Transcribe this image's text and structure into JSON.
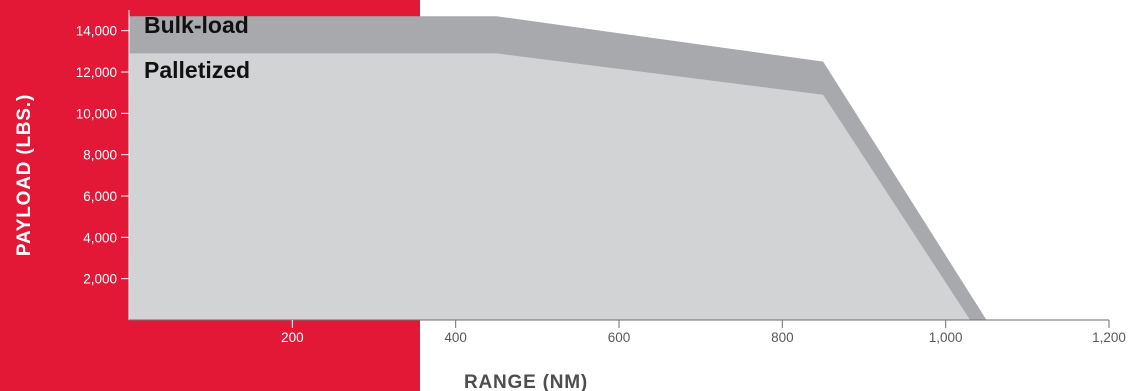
{
  "chart_data": {
    "type": "area",
    "title": "",
    "xlabel": "RANGE (NM)",
    "ylabel": "PAYLOAD (LBS.)",
    "xlim": [
      0,
      1200
    ],
    "ylim": [
      0,
      15000
    ],
    "x_ticks": [
      200,
      400,
      600,
      800,
      1000,
      1200
    ],
    "x_tick_labels": [
      "200",
      "400",
      "600",
      "800",
      "1,000",
      "1,200"
    ],
    "y_ticks": [
      2000,
      4000,
      6000,
      8000,
      10000,
      12000,
      14000
    ],
    "y_tick_labels": [
      "2,000",
      "4,000",
      "6,000",
      "8,000",
      "10,000",
      "12,000",
      "14,000"
    ],
    "grid": false,
    "legend": "inline labels, top-left",
    "series": [
      {
        "name": "Bulk-load",
        "color": "#a7a9ac",
        "x": [
          0,
          450,
          850,
          1050
        ],
        "y": [
          14700,
          14700,
          12500,
          0
        ]
      },
      {
        "name": "Palletized",
        "color": "#d1d3d4",
        "x": [
          0,
          450,
          850,
          1030
        ],
        "y": [
          12900,
          12900,
          10900,
          0
        ]
      }
    ],
    "colors": {
      "panel": "#e31837",
      "axis_title": "#4d4d4f",
      "tick_text_on_red": "#ffffff",
      "tick_text_on_white": "#58595b"
    }
  }
}
